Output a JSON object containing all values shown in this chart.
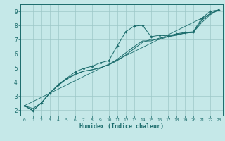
{
  "xlabel": "Humidex (Indice chaleur)",
  "bg_color": "#c5e8e8",
  "grid_color": "#9dc8c8",
  "line_color": "#1a6b6b",
  "xlim": [
    -0.5,
    23.5
  ],
  "ylim": [
    1.6,
    9.5
  ],
  "xticks": [
    0,
    1,
    2,
    3,
    4,
    5,
    6,
    7,
    8,
    9,
    10,
    11,
    12,
    13,
    14,
    15,
    16,
    17,
    18,
    19,
    20,
    21,
    22,
    23
  ],
  "yticks": [
    2,
    3,
    4,
    5,
    6,
    7,
    8,
    9
  ],
  "line1_x": [
    0,
    1,
    2,
    3,
    4,
    5,
    6,
    7,
    8,
    9,
    10,
    11,
    12,
    13,
    14,
    15,
    16,
    17,
    18,
    19,
    20,
    21,
    22,
    23
  ],
  "line1_y": [
    2.3,
    1.95,
    2.5,
    3.2,
    3.8,
    4.25,
    4.7,
    4.95,
    5.1,
    5.35,
    5.5,
    6.55,
    7.55,
    7.95,
    8.0,
    7.2,
    7.3,
    7.25,
    7.4,
    7.5,
    7.55,
    8.5,
    9.0,
    9.1
  ],
  "line2_x": [
    0,
    1,
    2,
    3,
    4,
    5,
    6,
    7,
    8,
    9,
    10,
    11,
    12,
    13,
    14,
    15,
    16,
    17,
    18,
    19,
    20,
    21,
    22,
    23
  ],
  "line2_y": [
    2.3,
    1.95,
    2.5,
    3.2,
    3.75,
    4.2,
    4.55,
    4.75,
    4.85,
    5.0,
    5.2,
    5.6,
    6.05,
    6.5,
    6.9,
    6.9,
    7.1,
    7.2,
    7.35,
    7.45,
    7.5,
    8.35,
    8.85,
    9.1
  ],
  "line3_x": [
    0,
    1,
    2,
    3,
    4,
    5,
    6,
    7,
    8,
    9,
    10,
    11,
    12,
    13,
    14,
    15,
    16,
    17,
    18,
    19,
    20,
    21,
    22,
    23
  ],
  "line3_y": [
    2.3,
    2.1,
    2.5,
    3.2,
    3.75,
    4.2,
    4.5,
    4.75,
    4.85,
    5.0,
    5.2,
    5.5,
    5.9,
    6.35,
    6.8,
    7.0,
    7.0,
    7.2,
    7.3,
    7.45,
    7.5,
    8.2,
    8.75,
    9.1
  ],
  "line4_x": [
    0,
    23
  ],
  "line4_y": [
    2.3,
    9.1
  ]
}
